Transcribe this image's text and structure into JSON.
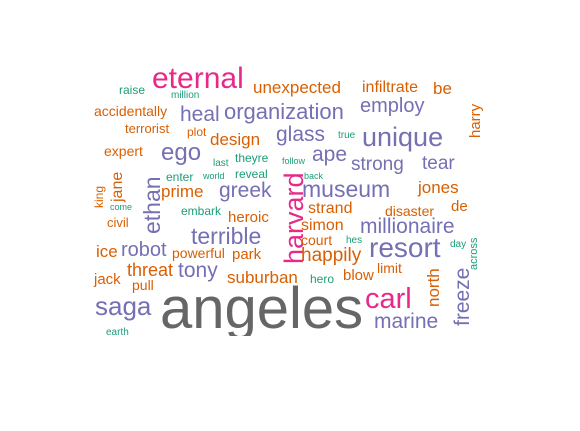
{
  "palette": {
    "orange": "#d95f02",
    "purple": "#7570b3",
    "magenta": "#e7298a",
    "green": "#1b9e77",
    "gray": "#666666"
  },
  "words": [
    {
      "text": "eternal",
      "color": "#e7298a"
    },
    {
      "text": "unexpected",
      "color": "#d95f02"
    },
    {
      "text": "infiltrate",
      "color": "#d95f02"
    },
    {
      "text": "be",
      "color": "#d95f02"
    },
    {
      "text": "raise",
      "color": "#1b9e77"
    },
    {
      "text": "million",
      "color": "#1b9e77"
    },
    {
      "text": "accidentally",
      "color": "#d95f02"
    },
    {
      "text": "heal",
      "color": "#7570b3"
    },
    {
      "text": "organization",
      "color": "#7570b3"
    },
    {
      "text": "employ",
      "color": "#7570b3"
    },
    {
      "text": "harry",
      "color": "#d95f02"
    },
    {
      "text": "terrorist",
      "color": "#d95f02"
    },
    {
      "text": "plot",
      "color": "#d95f02"
    },
    {
      "text": "glass",
      "color": "#7570b3"
    },
    {
      "text": "true",
      "color": "#1b9e77"
    },
    {
      "text": "unique",
      "color": "#7570b3"
    },
    {
      "text": "design",
      "color": "#d95f02"
    },
    {
      "text": "expert",
      "color": "#d95f02"
    },
    {
      "text": "ego",
      "color": "#7570b3"
    },
    {
      "text": "last",
      "color": "#1b9e77"
    },
    {
      "text": "theyre",
      "color": "#1b9e77"
    },
    {
      "text": "follow",
      "color": "#1b9e77"
    },
    {
      "text": "ape",
      "color": "#7570b3"
    },
    {
      "text": "strong",
      "color": "#7570b3"
    },
    {
      "text": "tear",
      "color": "#7570b3"
    },
    {
      "text": "enter",
      "color": "#1b9e77"
    },
    {
      "text": "world",
      "color": "#1b9e77"
    },
    {
      "text": "reveal",
      "color": "#1b9e77"
    },
    {
      "text": "back",
      "color": "#1b9e77"
    },
    {
      "text": "king",
      "color": "#d95f02"
    },
    {
      "text": "jane",
      "color": "#d95f02"
    },
    {
      "text": "ethan",
      "color": "#7570b3"
    },
    {
      "text": "prime",
      "color": "#d95f02"
    },
    {
      "text": "greek",
      "color": "#7570b3"
    },
    {
      "text": "harvard",
      "color": "#e7298a"
    },
    {
      "text": "museum",
      "color": "#7570b3"
    },
    {
      "text": "jones",
      "color": "#d95f02"
    },
    {
      "text": "come",
      "color": "#1b9e77"
    },
    {
      "text": "embark",
      "color": "#1b9e77"
    },
    {
      "text": "strand",
      "color": "#d95f02"
    },
    {
      "text": "disaster",
      "color": "#d95f02"
    },
    {
      "text": "de",
      "color": "#d95f02"
    },
    {
      "text": "civil",
      "color": "#d95f02"
    },
    {
      "text": "heroic",
      "color": "#d95f02"
    },
    {
      "text": "simon",
      "color": "#d95f02"
    },
    {
      "text": "millionaire",
      "color": "#7570b3"
    },
    {
      "text": "terrible",
      "color": "#7570b3"
    },
    {
      "text": "court",
      "color": "#d95f02"
    },
    {
      "text": "hes",
      "color": "#1b9e77"
    },
    {
      "text": "day",
      "color": "#1b9e77"
    },
    {
      "text": "across",
      "color": "#1b9e77"
    },
    {
      "text": "ice",
      "color": "#d95f02"
    },
    {
      "text": "robot",
      "color": "#7570b3"
    },
    {
      "text": "powerful",
      "color": "#d95f02"
    },
    {
      "text": "park",
      "color": "#d95f02"
    },
    {
      "text": "resort",
      "color": "#7570b3"
    },
    {
      "text": "happily",
      "color": "#d95f02"
    },
    {
      "text": "threat",
      "color": "#d95f02"
    },
    {
      "text": "tony",
      "color": "#7570b3"
    },
    {
      "text": "limit",
      "color": "#d95f02"
    },
    {
      "text": "north",
      "color": "#d95f02"
    },
    {
      "text": "freeze",
      "color": "#7570b3"
    },
    {
      "text": "jack",
      "color": "#d95f02"
    },
    {
      "text": "pull",
      "color": "#d95f02"
    },
    {
      "text": "suburban",
      "color": "#d95f02"
    },
    {
      "text": "hero",
      "color": "#1b9e77"
    },
    {
      "text": "blow",
      "color": "#d95f02"
    },
    {
      "text": "saga",
      "color": "#7570b3"
    },
    {
      "text": "angeles",
      "color": "#666666"
    },
    {
      "text": "carl",
      "color": "#e7298a"
    },
    {
      "text": "marine",
      "color": "#7570b3"
    },
    {
      "text": "earth",
      "color": "#1b9e77"
    }
  ]
}
